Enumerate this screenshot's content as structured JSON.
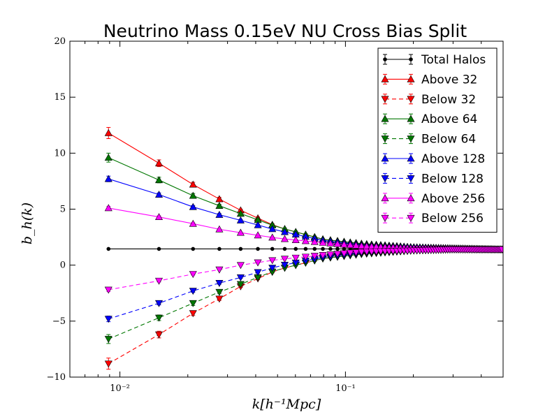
{
  "chart_data": {
    "type": "line",
    "title": "Neutrino Mass 0.15eV NU Cross Bias Split",
    "xlabel": "k[h⁻¹Mpc]",
    "ylabel": "b_h(k)",
    "xscale": "log",
    "xlim": [
      0.006,
      0.5
    ],
    "ylim": [
      -10,
      20
    ],
    "yticks": [
      -10,
      -5,
      0,
      5,
      10,
      15,
      20
    ],
    "ytick_labels": [
      "−10",
      "−5",
      "0",
      "5",
      "10",
      "15",
      "20"
    ],
    "xticks": [
      0.01,
      0.1
    ],
    "xtick_labels": [
      "10⁻²",
      "10⁻¹"
    ],
    "grid": false,
    "legend_position": "top-right",
    "x": [
      0.0089,
      0.0149,
      0.0211,
      0.0276,
      0.0343,
      0.0409,
      0.0474,
      0.0538,
      0.0602,
      0.0666,
      0.073,
      0.0794,
      0.0858,
      0.0922,
      0.0986,
      0.105,
      0.1114,
      0.1178,
      0.1242,
      0.1306,
      0.137,
      0.1434,
      0.1498,
      0.1562,
      0.1626,
      0.169,
      0.1754,
      0.1818,
      0.1882,
      0.1946,
      0.201,
      0.2074,
      0.2138,
      0.2202,
      0.2266,
      0.233,
      0.2394,
      0.2458,
      0.2522,
      0.2586,
      0.265,
      0.2714,
      0.2778,
      0.2842,
      0.2906,
      0.297,
      0.3034,
      0.3098,
      0.3162,
      0.3226,
      0.329,
      0.3354,
      0.3418,
      0.3482,
      0.3546,
      0.361,
      0.3674,
      0.3738,
      0.3802,
      0.3866,
      0.393,
      0.3994,
      0.4058,
      0.4122,
      0.4186,
      0.425,
      0.4314,
      0.4378,
      0.4442,
      0.4506,
      0.457,
      0.4634,
      0.4698,
      0.4762,
      0.4826,
      0.489,
      0.4954
    ],
    "series": [
      {
        "name": "Total Halos",
        "color": "#000000",
        "dashed": false,
        "marker": "dot",
        "k_values": [
          0.0089,
          0.0149,
          0.0211,
          0.0276,
          0.0343,
          0.05,
          0.08,
          0.12,
          0.2,
          0.3,
          0.5
        ],
        "b_values": [
          1.45,
          1.45,
          1.45,
          1.45,
          1.45,
          1.45,
          1.45,
          1.45,
          1.45,
          1.42,
          1.35
        ],
        "err": [
          0.05,
          0.05,
          0.04,
          0.04,
          0.03,
          0.03,
          0.03,
          0.03,
          0.03,
          0.03,
          0.03
        ]
      },
      {
        "name": "Above 32",
        "color": "#ff0000",
        "dashed": false,
        "marker": "triangle-up",
        "k_values": [
          0.0089,
          0.0149,
          0.0211,
          0.0276,
          0.0343,
          0.05,
          0.08,
          0.12,
          0.2,
          0.3,
          0.5
        ],
        "b_values": [
          11.8,
          9.1,
          7.2,
          5.9,
          4.9,
          3.4,
          2.3,
          1.9,
          1.6,
          1.5,
          1.4
        ],
        "err": [
          0.5,
          0.3,
          0.2,
          0.15,
          0.1,
          0.08,
          0.06,
          0.05,
          0.04,
          0.04,
          0.04
        ]
      },
      {
        "name": "Below 32",
        "color": "#ff0000",
        "dashed": true,
        "marker": "triangle-down",
        "k_values": [
          0.0089,
          0.0149,
          0.0211,
          0.0276,
          0.0343,
          0.05,
          0.08,
          0.12,
          0.2,
          0.3,
          0.5
        ],
        "b_values": [
          -8.8,
          -6.2,
          -4.3,
          -3.0,
          -1.9,
          -0.4,
          0.6,
          1.0,
          1.3,
          1.4,
          1.4
        ],
        "err": [
          0.5,
          0.3,
          0.2,
          0.15,
          0.1,
          0.08,
          0.06,
          0.05,
          0.04,
          0.04,
          0.04
        ]
      },
      {
        "name": "Above 64",
        "color": "#007700",
        "dashed": false,
        "marker": "triangle-up",
        "k_values": [
          0.0089,
          0.0149,
          0.0211,
          0.0276,
          0.0343,
          0.05,
          0.08,
          0.12,
          0.2,
          0.3,
          0.5
        ],
        "b_values": [
          9.6,
          7.6,
          6.2,
          5.3,
          4.6,
          3.4,
          2.3,
          1.9,
          1.6,
          1.5,
          1.4
        ],
        "err": [
          0.4,
          0.25,
          0.2,
          0.12,
          0.1,
          0.08,
          0.06,
          0.05,
          0.04,
          0.04,
          0.04
        ]
      },
      {
        "name": "Below 64",
        "color": "#007700",
        "dashed": true,
        "marker": "triangle-down",
        "k_values": [
          0.0089,
          0.0149,
          0.0211,
          0.0276,
          0.0343,
          0.05,
          0.08,
          0.12,
          0.2,
          0.3,
          0.5
        ],
        "b_values": [
          -6.6,
          -4.7,
          -3.4,
          -2.4,
          -1.7,
          -0.4,
          0.6,
          1.0,
          1.3,
          1.4,
          1.4
        ],
        "err": [
          0.4,
          0.25,
          0.2,
          0.12,
          0.1,
          0.08,
          0.06,
          0.05,
          0.04,
          0.04,
          0.04
        ]
      },
      {
        "name": "Above 128",
        "color": "#0000ff",
        "dashed": false,
        "marker": "triangle-up",
        "k_values": [
          0.0089,
          0.0149,
          0.0211,
          0.0276,
          0.0343,
          0.05,
          0.08,
          0.12,
          0.2,
          0.3,
          0.5
        ],
        "b_values": [
          7.7,
          6.3,
          5.2,
          4.5,
          4.0,
          3.1,
          2.2,
          1.8,
          1.6,
          1.5,
          1.4
        ],
        "err": [
          0.25,
          0.15,
          0.12,
          0.1,
          0.08,
          0.06,
          0.05,
          0.04,
          0.04,
          0.04,
          0.04
        ]
      },
      {
        "name": "Below 128",
        "color": "#0000ff",
        "dashed": true,
        "marker": "triangle-down",
        "k_values": [
          0.0089,
          0.0149,
          0.0211,
          0.0276,
          0.0343,
          0.05,
          0.08,
          0.12,
          0.2,
          0.3,
          0.5
        ],
        "b_values": [
          -4.8,
          -3.4,
          -2.3,
          -1.6,
          -1.1,
          -0.1,
          0.7,
          1.1,
          1.3,
          1.4,
          1.4
        ],
        "err": [
          0.25,
          0.15,
          0.12,
          0.1,
          0.08,
          0.06,
          0.05,
          0.04,
          0.04,
          0.04,
          0.04
        ]
      },
      {
        "name": "Above 256",
        "color": "#ff00ff",
        "dashed": false,
        "marker": "triangle-up",
        "k_values": [
          0.0089,
          0.0149,
          0.0211,
          0.0276,
          0.0343,
          0.05,
          0.08,
          0.12,
          0.2,
          0.3,
          0.5
        ],
        "b_values": [
          5.1,
          4.3,
          3.7,
          3.2,
          2.9,
          2.4,
          2.0,
          1.7,
          1.5,
          1.45,
          1.4
        ],
        "err": [
          0.15,
          0.1,
          0.08,
          0.06,
          0.05,
          0.04,
          0.04,
          0.04,
          0.03,
          0.03,
          0.03
        ]
      },
      {
        "name": "Below 256",
        "color": "#ff00ff",
        "dashed": true,
        "marker": "triangle-down",
        "k_values": [
          0.0089,
          0.0149,
          0.0211,
          0.0276,
          0.0343,
          0.05,
          0.08,
          0.12,
          0.2,
          0.3,
          0.5
        ],
        "b_values": [
          -2.2,
          -1.4,
          -0.8,
          -0.4,
          0.0,
          0.5,
          0.9,
          1.2,
          1.3,
          1.4,
          1.4
        ],
        "err": [
          0.15,
          0.1,
          0.08,
          0.06,
          0.05,
          0.04,
          0.04,
          0.04,
          0.03,
          0.03,
          0.03
        ]
      }
    ]
  }
}
